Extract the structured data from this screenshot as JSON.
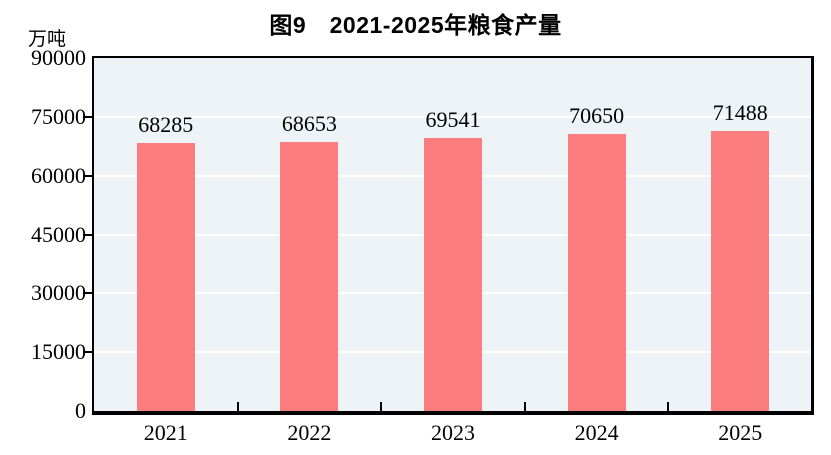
{
  "chart_data": {
    "type": "bar",
    "title": "图9　2021-2025年粮食产量",
    "unit_label": "万吨",
    "categories": [
      "2021",
      "2022",
      "2023",
      "2024",
      "2025"
    ],
    "values": [
      68285,
      68653,
      69541,
      70650,
      71488
    ],
    "data_labels": [
      "68285",
      "68653",
      "69541",
      "70650",
      "71488"
    ],
    "y_ticks": [
      0,
      15000,
      30000,
      45000,
      60000,
      75000,
      90000
    ],
    "ylim": [
      0,
      90000
    ],
    "xlabel": "",
    "ylabel": "万吨",
    "legend": "none",
    "grid": true,
    "colors": {
      "bar": "#FC7D7D",
      "plot_background": "#EDF3F7",
      "gridline": "#FFFFFF",
      "axis": "#000000",
      "text": "#000000",
      "page_background": "#FFFFFF"
    }
  }
}
